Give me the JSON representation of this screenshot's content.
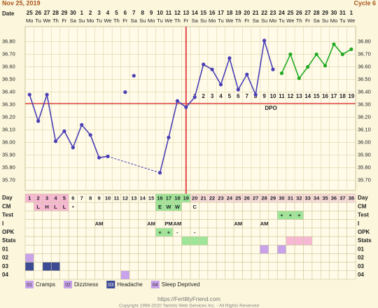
{
  "header": {
    "date": "Nov 25, 2019",
    "cycle": "Cycle 6",
    "date_label": "Date"
  },
  "chart_data": {
    "type": "line",
    "categories": [
      25,
      26,
      27,
      28,
      29,
      30,
      1,
      2,
      3,
      4,
      5,
      6,
      7,
      8,
      9,
      10,
      11,
      12,
      13,
      14,
      15,
      16,
      17,
      18,
      19,
      20,
      21,
      22,
      23,
      24,
      25,
      26,
      27,
      28,
      29,
      30,
      31,
      1
    ],
    "weekdays": [
      "Mo",
      "Tu",
      "We",
      "Th",
      "Fr",
      "Sa",
      "Su",
      "Mo",
      "Tu",
      "We",
      "Th",
      "Fr",
      "Sa",
      "Su",
      "Mo",
      "Tu",
      "We",
      "Th",
      "Fr",
      "Sa",
      "Su",
      "Mo",
      "Tu",
      "We",
      "Th",
      "Fr",
      "Sa",
      "Su",
      "Mo",
      "Tu",
      "We",
      "Th",
      "Fr",
      "Sa",
      "Su",
      "Mo",
      "Tu",
      "We"
    ],
    "ylim": [
      35.62,
      36.92
    ],
    "yticks": [
      {
        "value": 35.7,
        "label": "35.70"
      },
      {
        "value": 35.8,
        "label": "35.80"
      },
      {
        "value": 35.9,
        "label": "35.90"
      },
      {
        "value": 36.0,
        "label": "36.00"
      },
      {
        "value": 36.1,
        "label": "36.10"
      },
      {
        "value": 36.2,
        "label": "36.20"
      },
      {
        "value": 36.3,
        "label": "36.30"
      },
      {
        "value": 36.4,
        "label": "36.40"
      },
      {
        "value": 36.5,
        "label": "36.50"
      },
      {
        "value": 36.6,
        "label": "36.60"
      },
      {
        "value": 36.7,
        "label": "36.70"
      },
      {
        "value": 36.8,
        "label": "36.80"
      }
    ],
    "grid": true,
    "series": [
      {
        "color": "#4a3fb5",
        "values": [
          36.38,
          36.17,
          36.38,
          36.01,
          36.09,
          35.96,
          36.14,
          36.06,
          35.88,
          35.89,
          null,
          null,
          null,
          null,
          null,
          35.76,
          36.04,
          36.33,
          36.28,
          36.36,
          36.62,
          36.58,
          36.46,
          36.67,
          36.42,
          36.54,
          36.38,
          36.81,
          36.58,
          null,
          null,
          null,
          null,
          null,
          null,
          null,
          null,
          null
        ]
      },
      {
        "color": "#22aa22",
        "values": [
          null,
          null,
          null,
          null,
          null,
          null,
          null,
          null,
          null,
          null,
          null,
          null,
          null,
          null,
          null,
          null,
          null,
          null,
          null,
          null,
          null,
          null,
          null,
          null,
          null,
          null,
          null,
          null,
          null,
          36.55,
          36.7,
          36.51,
          36.6,
          36.7,
          36.61,
          36.78,
          36.7,
          36.74
        ]
      },
      {
        "color": "#4a3fb5",
        "line": false,
        "values": [
          null,
          null,
          null,
          null,
          null,
          null,
          null,
          null,
          null,
          null,
          null,
          36.4,
          36.53,
          null,
          null,
          null,
          null,
          null,
          null,
          null,
          null,
          null,
          null,
          null,
          null,
          null,
          null,
          null,
          null,
          null,
          null,
          null,
          null,
          null,
          null,
          null,
          null,
          null
        ]
      }
    ],
    "coverline": 36.31,
    "coverline_color": "#e04848",
    "ovulation_day": 19,
    "dpo": [
      null,
      null,
      null,
      null,
      null,
      null,
      null,
      null,
      null,
      null,
      null,
      null,
      null,
      null,
      null,
      null,
      null,
      null,
      null,
      1,
      2,
      3,
      4,
      5,
      6,
      7,
      8,
      9,
      10,
      11,
      12,
      13,
      14,
      15,
      16,
      17,
      18,
      19
    ],
    "dpo_label": "DPO"
  },
  "table": {
    "rows": [
      {
        "label": "Day",
        "values": [
          1,
          2,
          3,
          4,
          5,
          6,
          7,
          8,
          9,
          10,
          11,
          12,
          13,
          14,
          15,
          16,
          17,
          18,
          19,
          20,
          21,
          22,
          23,
          24,
          25,
          26,
          27,
          28,
          29,
          30,
          31,
          32,
          33,
          34,
          35,
          36,
          37,
          38
        ],
        "fill": [
          "#f7b8d4",
          "#f7b8d4",
          "#f7b8d4",
          "#f7b8d4",
          "#f7b8d4",
          null,
          null,
          null,
          null,
          null,
          null,
          null,
          null,
          null,
          null,
          "#9ee59a",
          "#9ee59a",
          "#9ee59a",
          "#9ee59a",
          "#f9dcdc",
          "#f9dcdc",
          "#f9dcdc",
          "#f9dcdc",
          "#f9dcdc",
          "#f9dcdc",
          "#f9dcdc",
          "#f9dcdc",
          "#f9dcdc",
          "#f9dcdc",
          "#f9dcdc",
          "#f9dcdc",
          "#f9dcdc",
          "#f9dcdc",
          "#f9dcdc",
          "#f9dcdc",
          "#f9dcdc",
          "#f9dcdc",
          "#f9dcdc"
        ]
      },
      {
        "label": "CM",
        "values": [
          null,
          "L",
          "H",
          "L",
          "L",
          "•",
          null,
          null,
          null,
          null,
          null,
          null,
          null,
          null,
          null,
          "E",
          "W",
          "W",
          null,
          "C",
          null,
          null,
          null,
          null,
          null,
          null,
          null,
          null,
          null,
          null,
          null,
          null,
          null,
          null,
          null,
          null,
          null,
          null
        ],
        "fill": [
          null,
          "#f7b8d4",
          "#f7b8d4",
          "#f7b8d4",
          "#f7b8d4",
          null,
          null,
          null,
          null,
          null,
          null,
          null,
          null,
          null,
          null,
          "#9ee59a",
          "#9ee59a",
          "#9ee59a",
          null,
          null,
          null,
          null,
          null,
          null,
          null,
          null,
          null,
          null,
          null,
          null,
          null,
          null,
          null,
          null,
          null,
          null,
          null,
          null
        ]
      },
      {
        "label": "Test",
        "values": [
          null,
          null,
          null,
          null,
          null,
          null,
          null,
          null,
          null,
          null,
          null,
          null,
          null,
          null,
          null,
          null,
          null,
          null,
          null,
          null,
          null,
          null,
          null,
          null,
          null,
          null,
          null,
          null,
          null,
          "+",
          "+",
          "+",
          null,
          null,
          null,
          null,
          null,
          null
        ],
        "fill": [
          null,
          null,
          null,
          null,
          null,
          null,
          null,
          null,
          null,
          null,
          null,
          null,
          null,
          null,
          null,
          null,
          null,
          null,
          null,
          null,
          null,
          null,
          null,
          null,
          null,
          null,
          null,
          null,
          null,
          "#9ee59a",
          "#9ee59a",
          "#9ee59a",
          null,
          null,
          null,
          null,
          null,
          null
        ]
      },
      {
        "label": "I",
        "values": [
          null,
          null,
          null,
          null,
          null,
          null,
          null,
          null,
          "AM",
          null,
          null,
          null,
          null,
          null,
          "AM",
          null,
          "PM",
          "AM",
          null,
          null,
          null,
          null,
          null,
          null,
          "AM",
          null,
          null,
          "AM",
          null,
          null,
          null,
          null,
          null,
          null,
          null,
          null,
          null,
          null
        ]
      },
      {
        "label": "OPK",
        "values": [
          null,
          null,
          null,
          null,
          null,
          null,
          null,
          null,
          null,
          null,
          null,
          null,
          null,
          null,
          null,
          "+",
          "+",
          "-",
          null,
          "-",
          null,
          null,
          null,
          null,
          null,
          null,
          null,
          null,
          null,
          null,
          null,
          null,
          null,
          null,
          null,
          null,
          null,
          null
        ],
        "fill": [
          null,
          null,
          null,
          null,
          null,
          null,
          null,
          null,
          null,
          null,
          null,
          null,
          null,
          null,
          null,
          "#9ee59a",
          "#9ee59a",
          null,
          null,
          null,
          null,
          null,
          null,
          null,
          null,
          null,
          null,
          null,
          null,
          null,
          null,
          null,
          null,
          null,
          null,
          null,
          null,
          null
        ]
      },
      {
        "label": "Stats",
        "fill": [
          null,
          null,
          null,
          null,
          null,
          null,
          null,
          null,
          null,
          null,
          null,
          null,
          null,
          null,
          null,
          null,
          null,
          null,
          "#9ee59a",
          "#9ee59a",
          "#9ee59a",
          null,
          null,
          null,
          null,
          null,
          null,
          null,
          null,
          null,
          "#f7b8d4",
          "#f7b8d4",
          "#f7b8d4",
          null,
          null,
          null,
          null,
          null
        ]
      },
      {
        "label": "01",
        "color": "#c8a2ea",
        "fill": [
          null,
          null,
          null,
          null,
          null,
          null,
          null,
          null,
          null,
          null,
          null,
          null,
          null,
          null,
          null,
          null,
          null,
          null,
          null,
          null,
          null,
          null,
          null,
          null,
          null,
          null,
          null,
          "#c8a2ea",
          null,
          "#c8a2ea",
          null,
          null,
          null,
          null,
          null,
          null,
          null,
          null
        ]
      },
      {
        "label": "02",
        "color": "#c8a2ea",
        "fill": [
          "#c8a2ea",
          null,
          null,
          null,
          null,
          null,
          null,
          null,
          null,
          null,
          null,
          null,
          null,
          null,
          null,
          null,
          null,
          null,
          null,
          null,
          null,
          null,
          null,
          null,
          null,
          null,
          null,
          null,
          null,
          null,
          null,
          null,
          null,
          null,
          null,
          null,
          null,
          null
        ]
      },
      {
        "label": "03",
        "color": "#3c4b93",
        "fill": [
          "#3c4b93",
          null,
          "#3c4b93",
          "#3c4b93",
          null,
          null,
          null,
          null,
          null,
          null,
          null,
          null,
          null,
          null,
          null,
          null,
          null,
          null,
          null,
          null,
          null,
          null,
          null,
          null,
          null,
          null,
          null,
          null,
          null,
          null,
          null,
          null,
          null,
          null,
          null,
          null,
          null,
          null
        ]
      },
      {
        "label": "04",
        "color": "#c8a2ea",
        "fill": [
          null,
          null,
          null,
          null,
          null,
          null,
          null,
          null,
          null,
          null,
          null,
          "#c8a2ea",
          null,
          null,
          null,
          null,
          null,
          null,
          null,
          null,
          null,
          null,
          null,
          null,
          null,
          null,
          null,
          null,
          null,
          null,
          null,
          null,
          null,
          null,
          null,
          null,
          null,
          null
        ]
      }
    ]
  },
  "legend": [
    "Cramps",
    "Dizziness",
    "Headache",
    "Sleep Deprived"
  ],
  "footer": {
    "url": "https://FertilityFriend.com",
    "copyright": "Copyright 1998-2020 Tamtris Web Services Inc. - All Rights Reserved"
  }
}
